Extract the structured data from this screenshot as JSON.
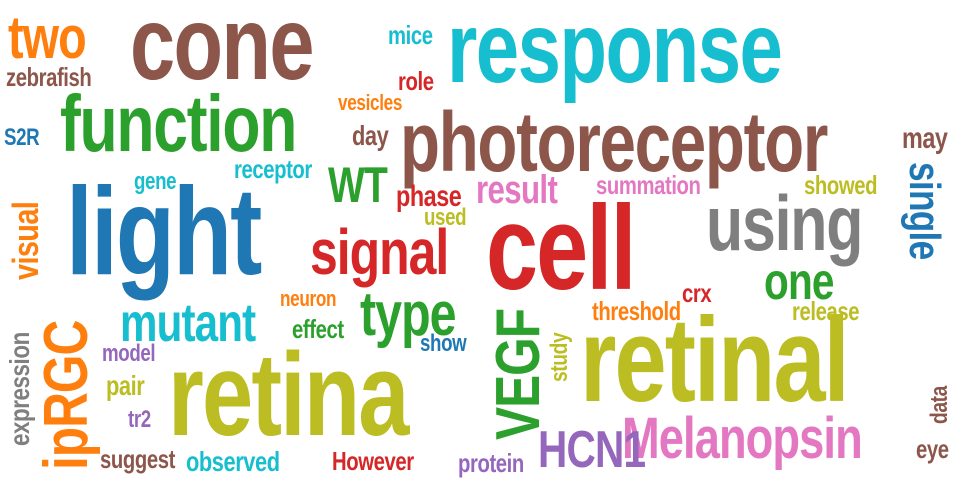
{
  "colors": {
    "brown": "#8c564b",
    "cyan": "#17becf",
    "olive": "#bcbd22",
    "blue": "#1f77b4",
    "red": "#d62728",
    "green": "#2ca02c",
    "orange": "#ff7f0e",
    "pink": "#e377c2",
    "purple": "#9467bd",
    "gray": "#7f7f7f"
  },
  "words": [
    {
      "text": "cone",
      "color": "brown"
    },
    {
      "text": "response",
      "color": "cyan"
    },
    {
      "text": "two",
      "color": "orange"
    },
    {
      "text": "mice",
      "color": "cyan"
    },
    {
      "text": "zebrafish",
      "color": "brown"
    },
    {
      "text": "role",
      "color": "red"
    },
    {
      "text": "function",
      "color": "green"
    },
    {
      "text": "vesicles",
      "color": "orange"
    },
    {
      "text": "photoreceptor",
      "color": "brown"
    },
    {
      "text": "day",
      "color": "brown"
    },
    {
      "text": "may",
      "color": "brown"
    },
    {
      "text": "S2R",
      "color": "blue"
    },
    {
      "text": "receptor",
      "color": "cyan"
    },
    {
      "text": "gene",
      "color": "cyan"
    },
    {
      "text": "WT",
      "color": "green"
    },
    {
      "text": "result",
      "color": "pink"
    },
    {
      "text": "summation",
      "color": "pink"
    },
    {
      "text": "showed",
      "color": "olive"
    },
    {
      "text": "visual",
      "color": "orange"
    },
    {
      "text": "light",
      "color": "blue"
    },
    {
      "text": "phase",
      "color": "red"
    },
    {
      "text": "used",
      "color": "olive"
    },
    {
      "text": "single",
      "color": "blue"
    },
    {
      "text": "using",
      "color": "gray"
    },
    {
      "text": "signal",
      "color": "red"
    },
    {
      "text": "cell",
      "color": "red"
    },
    {
      "text": "one",
      "color": "green"
    },
    {
      "text": "neuron",
      "color": "orange"
    },
    {
      "text": "crx",
      "color": "red"
    },
    {
      "text": "mutant",
      "color": "cyan"
    },
    {
      "text": "type",
      "color": "green"
    },
    {
      "text": "threshold",
      "color": "orange"
    },
    {
      "text": "release",
      "color": "olive"
    },
    {
      "text": "ipRGC",
      "color": "orange"
    },
    {
      "text": "effect",
      "color": "green"
    },
    {
      "text": "VEGF",
      "color": "green"
    },
    {
      "text": "study",
      "color": "olive"
    },
    {
      "text": "retinal",
      "color": "olive"
    },
    {
      "text": "expression",
      "color": "gray"
    },
    {
      "text": "model",
      "color": "purple"
    },
    {
      "text": "show",
      "color": "blue"
    },
    {
      "text": "pair",
      "color": "olive"
    },
    {
      "text": "retina",
      "color": "olive"
    },
    {
      "text": "data",
      "color": "brown"
    },
    {
      "text": "tr2",
      "color": "purple"
    },
    {
      "text": "Melanopsin",
      "color": "pink"
    },
    {
      "text": "eye",
      "color": "brown"
    },
    {
      "text": "suggest",
      "color": "brown"
    },
    {
      "text": "observed",
      "color": "cyan"
    },
    {
      "text": "However",
      "color": "red"
    },
    {
      "text": "protein",
      "color": "purple"
    },
    {
      "text": "HCN1",
      "color": "purple"
    }
  ]
}
